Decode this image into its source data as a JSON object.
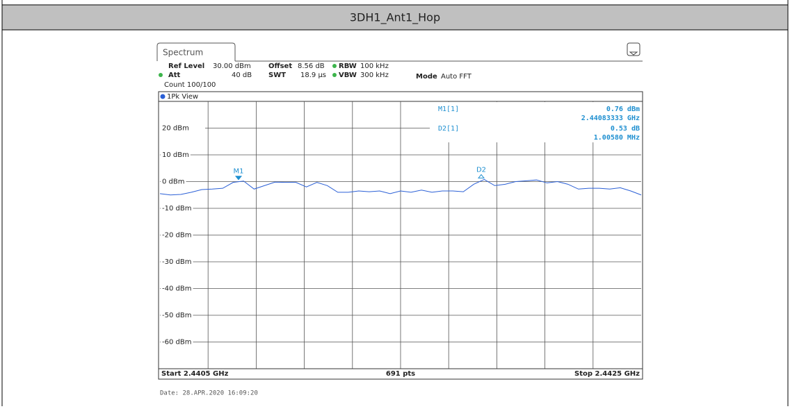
{
  "header": {
    "title": "3DH1_Ant1_Hop"
  },
  "instrument": {
    "tab": "Spectrum",
    "ref_level_label": "Ref Level",
    "ref_level": "30.00 dBm",
    "offset_label": "Offset",
    "offset": "8.56 dB",
    "rbw_label": "RBW",
    "rbw": "100 kHz",
    "att_label": "Att",
    "att": "40 dB",
    "swt_label": "SWT",
    "swt": "18.9 µs",
    "vbw_label": "VBW",
    "vbw": "300 kHz",
    "mode_label": "Mode",
    "mode": "Auto FFT",
    "count": "Count 100/100",
    "view": "1Pk View"
  },
  "markers": [
    {
      "label": "M1[1]",
      "value": "0.76 dBm",
      "freq": "2.44083333 GHz",
      "tag": "M1"
    },
    {
      "label": "D2[1]",
      "value": "0.53 dB",
      "freq": "1.00580 MHz",
      "tag": "D2"
    }
  ],
  "yaxis": {
    "ylim": [
      -70,
      30
    ],
    "ticks": [
      {
        "value": 20,
        "label": "20 dBm"
      },
      {
        "value": 10,
        "label": "10 dBm"
      },
      {
        "value": 0,
        "label": "0 dBm"
      },
      {
        "value": -10,
        "label": "-10 dBm"
      },
      {
        "value": -20,
        "label": "-20 dBm"
      },
      {
        "value": -30,
        "label": "-30 dBm"
      },
      {
        "value": -40,
        "label": "-40 dBm"
      },
      {
        "value": -50,
        "label": "-50 dBm"
      },
      {
        "value": -60,
        "label": "-60 dBm"
      }
    ]
  },
  "trace": {
    "color": "#2a5fd6",
    "values": [
      -4.5,
      -5,
      -4.8,
      -4,
      -3,
      -2.8,
      -2.5,
      -0.3,
      0.2,
      -2.8,
      -1.5,
      -0.2,
      -0.3,
      -0.3,
      -2,
      -0.3,
      -1.5,
      -4,
      -4,
      -3.5,
      -3.8,
      -3.5,
      -4.5,
      -3.5,
      -4,
      -3.2,
      -4,
      -3.5,
      -3.5,
      -3.8,
      -1,
      0.8,
      -1.5,
      -1,
      0,
      0.3,
      0.6,
      -0.5,
      0,
      -1,
      -2.8,
      -2.5,
      -2.5,
      -2.8,
      -2.3,
      -3.5,
      -5
    ]
  },
  "footer": {
    "start": "Start 2.4405 GHz",
    "points": "691 pts",
    "stop": "Stop 2.4425 GHz"
  },
  "date": "Date: 28.APR.2020  16:09:20"
}
